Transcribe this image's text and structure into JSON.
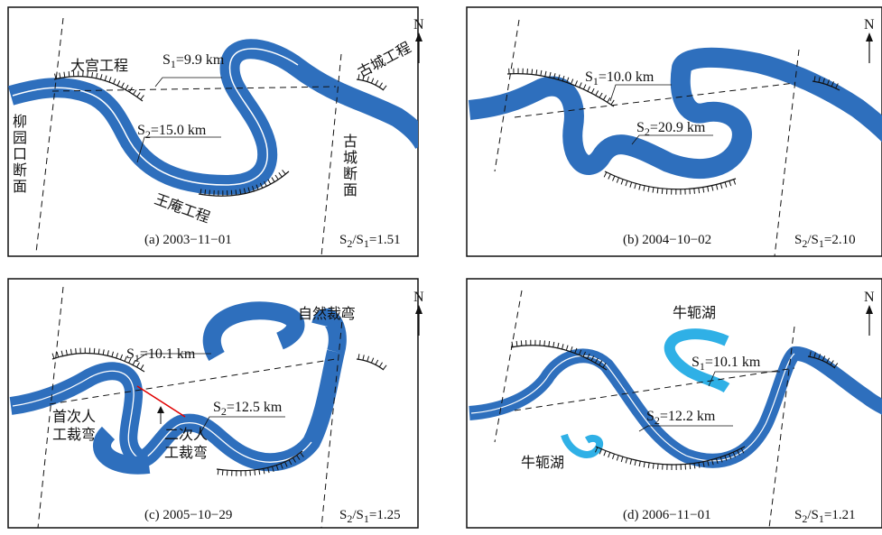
{
  "colors": {
    "river": "#2e6fbd",
    "oxbow": "#2fb0e6",
    "cut": "#e00000",
    "line": "#111111"
  },
  "panels": [
    {
      "caption": "(a) 2003−11−01",
      "ratio": {
        "prefix": "S",
        "sub2": "2",
        "slash": "/S",
        "sub1": "1",
        "value": "=1.51"
      },
      "s1": {
        "sym": "S",
        "sub": "1",
        "val": "=9.9 km"
      },
      "s2": {
        "sym": "S",
        "sub": "2",
        "val": "=15.0 km"
      },
      "labels": {
        "dagong": "大宫工程",
        "gucheng_works": "古城工程",
        "wangan": "王庵工程",
        "liuyuankou": [
          "柳",
          "园",
          "口",
          "断",
          "面"
        ],
        "gucheng_section": [
          "古",
          "城",
          "断",
          "面"
        ]
      }
    },
    {
      "caption": "(b) 2004−10−02",
      "ratio": {
        "prefix": "S",
        "sub2": "2",
        "slash": "/S",
        "sub1": "1",
        "value": "=2.10"
      },
      "s1": {
        "sym": "S",
        "sub": "1",
        "val": "=10.0 km"
      },
      "s2": {
        "sym": "S",
        "sub": "2",
        "val": "=20.9 km"
      }
    },
    {
      "caption": "(c) 2005−10−29",
      "ratio": {
        "prefix": "S",
        "sub2": "2",
        "slash": "/S",
        "sub1": "1",
        "value": "=1.25"
      },
      "s1": {
        "sym": "S",
        "sub": "1",
        "val": "=10.1 km"
      },
      "s2": {
        "sym": "S",
        "sub": "2",
        "val": "=12.5 km"
      },
      "labels": {
        "natural": "自然裁弯",
        "first_cut": [
          "首次人",
          "工裁弯"
        ],
        "second_cut": [
          "二次人",
          "工裁弯"
        ]
      }
    },
    {
      "caption": "(d) 2006−11−01",
      "ratio": {
        "prefix": "S",
        "sub2": "2",
        "slash": "/S",
        "sub1": "1",
        "value": "=1.21"
      },
      "s1": {
        "sym": "S",
        "sub": "1",
        "val": "=10.1 km"
      },
      "s2": {
        "sym": "S",
        "sub": "2",
        "val": "=12.2 km"
      },
      "labels": {
        "oxbow_top": "牛轭湖",
        "oxbow_bottom": "牛轭湖"
      }
    }
  ],
  "north": "N"
}
